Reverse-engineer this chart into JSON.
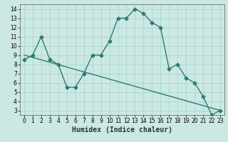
{
  "line1_x": [
    0,
    1,
    2,
    3,
    4,
    5,
    6,
    7,
    8,
    9,
    10,
    11,
    12,
    13,
    14,
    15,
    16,
    17,
    18,
    19,
    20,
    21,
    22,
    23
  ],
  "line1_y": [
    8.5,
    9.0,
    11.0,
    8.5,
    8.0,
    5.5,
    5.5,
    7.0,
    9.0,
    9.0,
    10.5,
    13.0,
    13.0,
    14.0,
    13.5,
    12.5,
    12.0,
    7.5,
    8.0,
    6.5,
    6.0,
    4.5,
    2.5,
    3.0
  ],
  "line2_x": [
    0,
    23
  ],
  "line2_y": [
    9.0,
    3.0
  ],
  "line_color": "#2d7d6f",
  "bg_color": "#cce8e4",
  "grid_color": "#aad4cf",
  "xlabel": "Humidex (Indice chaleur)",
  "xlim": [
    -0.5,
    23.5
  ],
  "ylim": [
    2.5,
    14.5
  ],
  "yticks": [
    3,
    4,
    5,
    6,
    7,
    8,
    9,
    10,
    11,
    12,
    13,
    14
  ],
  "xticks": [
    0,
    1,
    2,
    3,
    4,
    5,
    6,
    7,
    8,
    9,
    10,
    11,
    12,
    13,
    14,
    15,
    16,
    17,
    18,
    19,
    20,
    21,
    22,
    23
  ],
  "marker": "D",
  "marker_size": 2.5,
  "line_width": 1.0,
  "tick_fontsize": 5.5,
  "xlabel_fontsize": 7.0
}
